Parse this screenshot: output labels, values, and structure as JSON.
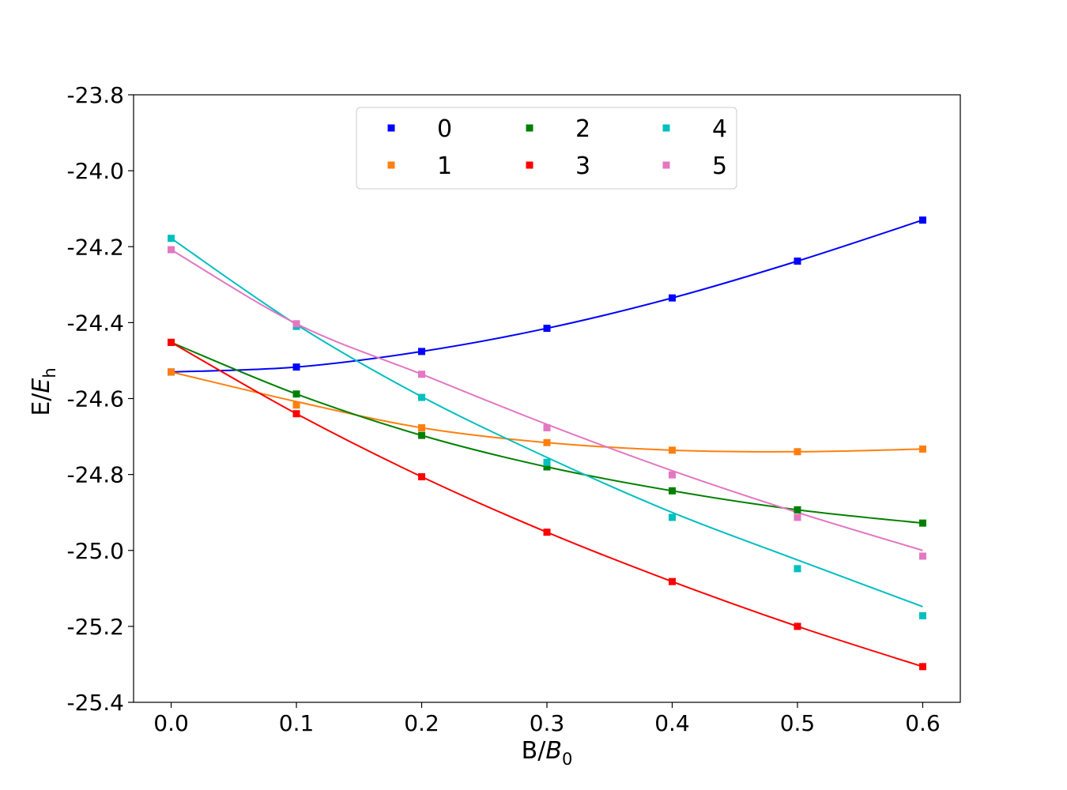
{
  "chart_data": {
    "type": "scatter",
    "title": "",
    "xlabel": {
      "base": "B/",
      "italic": "B",
      "sub": "0"
    },
    "ylabel": {
      "base": "E/",
      "italic": "E",
      "sub": "h"
    },
    "xlim": [
      -0.03,
      0.63
    ],
    "ylim": [
      -25.4,
      -23.8
    ],
    "xticks": [
      0.0,
      0.1,
      0.2,
      0.3,
      0.4,
      0.5,
      0.6
    ],
    "xtick_labels": [
      "0.0",
      "0.1",
      "0.2",
      "0.3",
      "0.4",
      "0.5",
      "0.6"
    ],
    "yticks": [
      -23.8,
      -24.0,
      -24.2,
      -24.4,
      -24.6,
      -24.8,
      -25.0,
      -25.2,
      -25.4
    ],
    "ytick_labels": [
      "-23.8",
      "-24.0",
      "-24.2",
      "-24.4",
      "-24.6",
      "-24.8",
      "-25.0",
      "-25.2",
      "-25.4"
    ],
    "grid": false,
    "legend": {
      "position": "top-center",
      "columns": 3
    },
    "x": [
      0.0,
      0.1,
      0.2,
      0.3,
      0.4,
      0.5,
      0.6
    ],
    "series": [
      {
        "name": "0",
        "color": "#0000ff",
        "points": [
          -24.53,
          -24.517,
          -24.476,
          -24.415,
          -24.335,
          -24.238,
          -24.13
        ],
        "curve": [
          -24.53,
          -24.517,
          -24.476,
          -24.415,
          -24.335,
          -24.238,
          -24.13
        ]
      },
      {
        "name": "1",
        "color": "#ff7f0e",
        "points": [
          -24.53,
          -24.617,
          -24.677,
          -24.716,
          -24.736,
          -24.74,
          -24.733
        ],
        "curve": [
          -24.53,
          -24.608,
          -24.677,
          -24.716,
          -24.736,
          -24.74,
          -24.733
        ]
      },
      {
        "name": "2",
        "color": "#008000",
        "points": [
          -24.452,
          -24.588,
          -24.697,
          -24.78,
          -24.843,
          -24.893,
          -24.928
        ],
        "curve": [
          -24.452,
          -24.588,
          -24.697,
          -24.78,
          -24.843,
          -24.893,
          -24.928
        ]
      },
      {
        "name": "3",
        "color": "#ff0000",
        "points": [
          -24.452,
          -24.64,
          -24.806,
          -24.952,
          -25.082,
          -25.2,
          -25.306
        ],
        "curve": [
          -24.452,
          -24.64,
          -24.806,
          -24.952,
          -25.082,
          -25.2,
          -25.306
        ]
      },
      {
        "name": "4",
        "color": "#00bfbf",
        "points": [
          -24.178,
          -24.41,
          -24.597,
          -24.768,
          -24.913,
          -25.048,
          -25.172
        ],
        "curve": [
          -24.178,
          -24.405,
          -24.595,
          -24.755,
          -24.9,
          -25.025,
          -25.148
        ]
      },
      {
        "name": "5",
        "color": "#e377c2",
        "points": [
          -24.208,
          -24.403,
          -24.536,
          -24.677,
          -24.801,
          -24.913,
          -25.015
        ],
        "curve": [
          -24.208,
          -24.403,
          -24.536,
          -24.668,
          -24.79,
          -24.9,
          -25.0
        ]
      }
    ]
  }
}
